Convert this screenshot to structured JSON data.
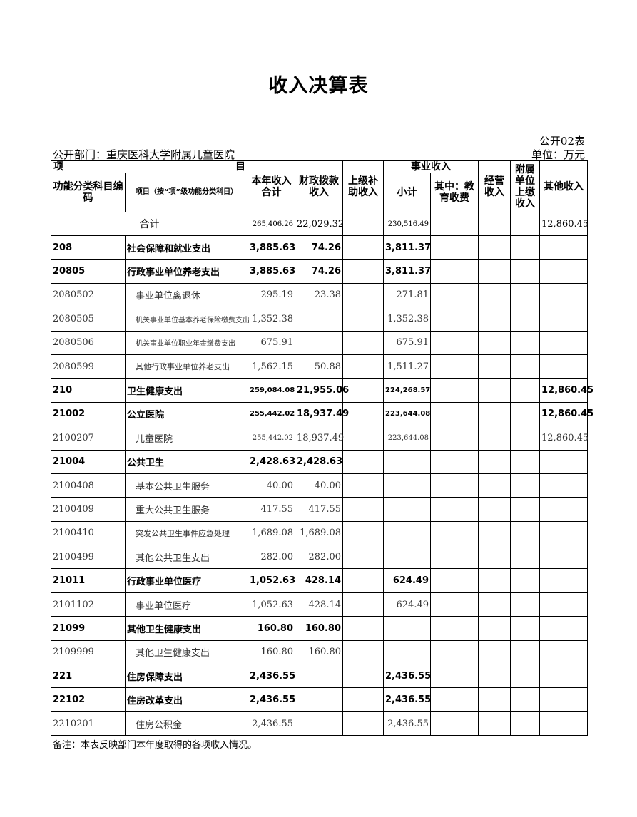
{
  "title": "收入决算表",
  "form_no": "公开02表",
  "department": "公开部门：重庆医科大学附属儿童医院",
  "unit": "单位：万元",
  "headers": {
    "item_left": "项",
    "item_right": "目",
    "code": "功能分类科目编码",
    "name": "项目（按“项”级功能分类科目）",
    "total": "本年收入合计",
    "fiscal": "财政拨款收入",
    "upper": "上级补助收入",
    "business_group": "事业收入",
    "subtotal": "小计",
    "edu": "其中：教育收费",
    "operating": "经营收入",
    "affiliated": "附属单位上缴收入",
    "other": "其他收入"
  },
  "total_row": {
    "label": "合计",
    "total": "265,406.26",
    "fiscal": "22,029.32",
    "upper": "",
    "subtotal": "230,516.49",
    "edu": "",
    "operating": "",
    "affiliated": "",
    "other": "12,860.45"
  },
  "rows": [
    {
      "code": "208",
      "name": "社会保障和就业支出",
      "bold": true,
      "total": "3,885.63",
      "fiscal": "74.26",
      "subtotal": "3,811.37",
      "other": ""
    },
    {
      "code": "20805",
      "name": "行政事业单位养老支出",
      "bold": true,
      "total": "3,885.63",
      "fiscal": "74.26",
      "subtotal": "3,811.37",
      "other": ""
    },
    {
      "code": "2080502",
      "name": "事业单位离退休",
      "total": "295.19",
      "fiscal": "23.38",
      "subtotal": "271.81",
      "other": ""
    },
    {
      "code": "2080505",
      "name": "机关事业单位基本养老保险缴费支出",
      "total": "1,352.38",
      "fiscal": "",
      "subtotal": "1,352.38",
      "other": ""
    },
    {
      "code": "2080506",
      "name": "机关事业单位职业年金缴费支出",
      "total": "675.91",
      "fiscal": "",
      "subtotal": "675.91",
      "other": ""
    },
    {
      "code": "2080599",
      "name": "其他行政事业单位养老支出",
      "total": "1,562.15",
      "fiscal": "50.88",
      "subtotal": "1,511.27",
      "other": ""
    },
    {
      "code": "210",
      "name": "卫生健康支出",
      "bold": true,
      "total": "259,084.08",
      "fiscal": "21,955.06",
      "subtotal": "224,268.57",
      "other": "12,860.45"
    },
    {
      "code": "21002",
      "name": "公立医院",
      "bold": true,
      "total": "255,442.02",
      "fiscal": "18,937.49",
      "subtotal": "223,644.08",
      "other": "12,860.45"
    },
    {
      "code": "2100207",
      "name": "儿童医院",
      "total": "255,442.02",
      "fiscal": "18,937.49",
      "subtotal": "223,644.08",
      "other": "12,860.45"
    },
    {
      "code": "21004",
      "name": "公共卫生",
      "bold": true,
      "total": "2,428.63",
      "fiscal": "2,428.63",
      "subtotal": "",
      "other": ""
    },
    {
      "code": "2100408",
      "name": "基本公共卫生服务",
      "total": "40.00",
      "fiscal": "40.00",
      "subtotal": "",
      "other": ""
    },
    {
      "code": "2100409",
      "name": "重大公共卫生服务",
      "total": "417.55",
      "fiscal": "417.55",
      "subtotal": "",
      "other": ""
    },
    {
      "code": "2100410",
      "name": "突发公共卫生事件应急处理",
      "total": "1,689.08",
      "fiscal": "1,689.08",
      "subtotal": "",
      "other": ""
    },
    {
      "code": "2100499",
      "name": "其他公共卫生支出",
      "total": "282.00",
      "fiscal": "282.00",
      "subtotal": "",
      "other": ""
    },
    {
      "code": "21011",
      "name": "行政事业单位医疗",
      "bold": true,
      "total": "1,052.63",
      "fiscal": "428.14",
      "subtotal": "624.49",
      "other": ""
    },
    {
      "code": "2101102",
      "name": "事业单位医疗",
      "total": "1,052.63",
      "fiscal": "428.14",
      "subtotal": "624.49",
      "other": ""
    },
    {
      "code": "21099",
      "name": "其他卫生健康支出",
      "bold": true,
      "total": "160.80",
      "fiscal": "160.80",
      "subtotal": "",
      "other": ""
    },
    {
      "code": "2109999",
      "name": "其他卫生健康支出",
      "total": "160.80",
      "fiscal": "160.80",
      "subtotal": "",
      "other": ""
    },
    {
      "code": "221",
      "name": "住房保障支出",
      "bold": true,
      "total": "2,436.55",
      "fiscal": "",
      "subtotal": "2,436.55",
      "other": ""
    },
    {
      "code": "22102",
      "name": "住房改革支出",
      "bold": true,
      "total": "2,436.55",
      "fiscal": "",
      "subtotal": "2,436.55",
      "other": ""
    },
    {
      "code": "2210201",
      "name": "住房公积金",
      "total": "2,436.55",
      "fiscal": "",
      "subtotal": "2,436.55",
      "other": ""
    }
  ],
  "note": "备注：本表反映部门本年度取得的各项收入情况。"
}
